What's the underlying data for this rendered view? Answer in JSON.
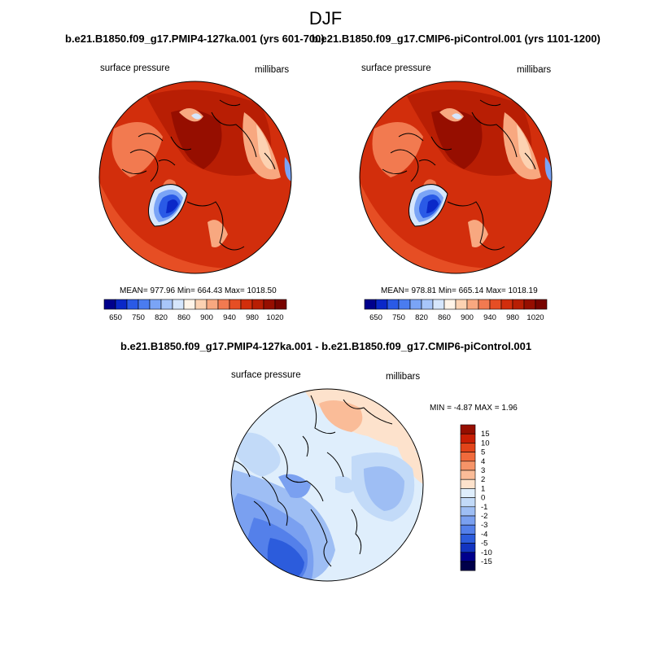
{
  "season": "DJF",
  "panels": [
    {
      "title": "b.e21.B1850.f09_g17.PMIP4-127ka.001 (yrs 601-700)",
      "variable": "surface pressure",
      "units": "millibars",
      "stats": "MEAN= 977.96  Min= 664.43  Max= 1018.50",
      "colorbar_labels": [
        "650",
        "750",
        "820",
        "860",
        "900",
        "940",
        "980",
        "1020"
      ]
    },
    {
      "title": "b.e21.B1850.f09_g17.CMIP6-piControl.001 (yrs 1101-1200)",
      "variable": "surface pressure",
      "units": "millibars",
      "stats": "MEAN= 978.81  Min= 665.14  Max= 1018.19",
      "colorbar_labels": [
        "650",
        "750",
        "820",
        "860",
        "900",
        "940",
        "980",
        "1020"
      ]
    }
  ],
  "diff": {
    "title": "b.e21.B1850.f09_g17.PMIP4-127ka.001 - b.e21.B1850.f09_g17.CMIP6-piControl.001",
    "variable": "surface pressure",
    "units": "millibars",
    "stats": "MIN =  -4.87 MAX =   1.96",
    "colorbar_labels": [
      "15",
      "10",
      "5",
      "4",
      "3",
      "2",
      "1",
      "0",
      "-1",
      "-2",
      "-3",
      "-4",
      "-5",
      "-10",
      "-15"
    ]
  },
  "colors": {
    "abs_scale": [
      "#00008c",
      "#0a28c8",
      "#2a5ae6",
      "#4a7cf0",
      "#7aa4f6",
      "#a8c6fa",
      "#d6e6fc",
      "#fff4e8",
      "#fcd2b2",
      "#f8a880",
      "#f27a50",
      "#e64e24",
      "#d22e0c",
      "#b81e04",
      "#960e00",
      "#780400"
    ],
    "diff_scale": [
      "#960e00",
      "#c81e04",
      "#e2441a",
      "#f06a3c",
      "#f69468",
      "#fabc98",
      "#fde2cc",
      "#dfeefc",
      "#c2daf8",
      "#9ebef4",
      "#7aa0f0",
      "#5480ea",
      "#2c5cdc",
      "#1234c0",
      "#00008c"
    ]
  }
}
